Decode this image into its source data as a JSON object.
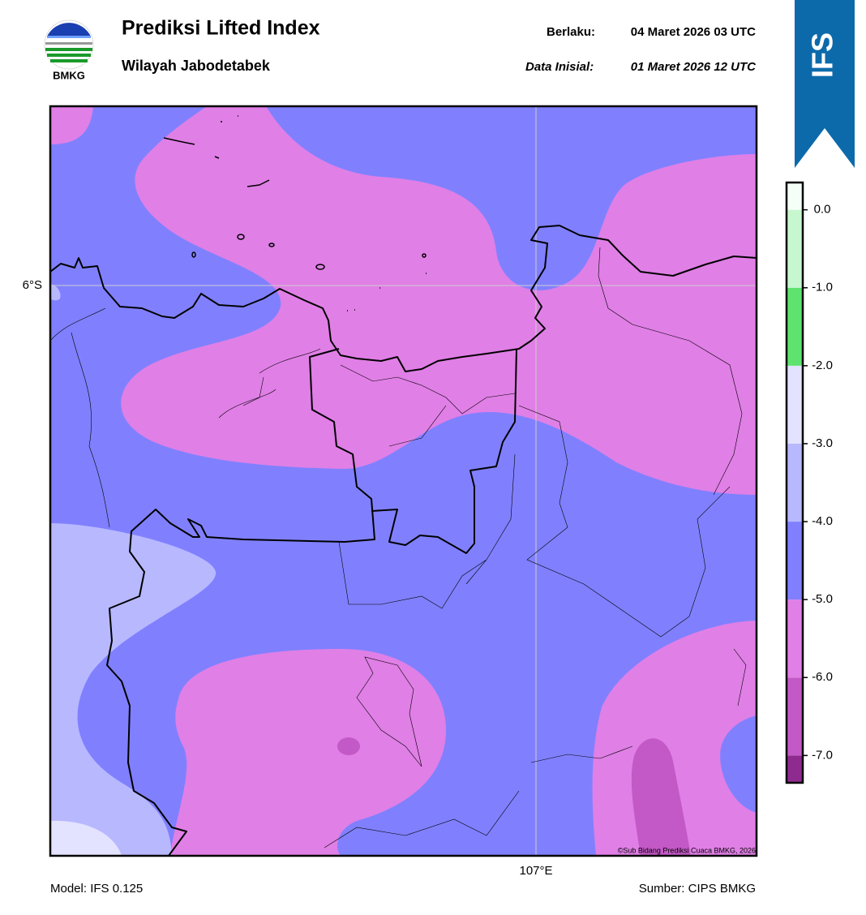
{
  "header": {
    "logo_text": "BMKG",
    "title": "Prediksi Lifted Index",
    "subtitle": "Wilayah Jabodetabek",
    "valid_label": "Berlaku:",
    "valid_time": "04 Maret 2026 03 UTC",
    "init_label": "Data Inisial:",
    "init_time": "01 Maret 2026 12 UTC",
    "badge": "IFS"
  },
  "map": {
    "lat_label": "6°S",
    "lon_label": "107°E",
    "copyright": "©Sub Bidang Prediksi Cuaca BMKG, 2026"
  },
  "colorbar": {
    "lim": [
      -7.35,
      0.35
    ],
    "bins": [
      -7.35,
      -7,
      -6,
      -5,
      -4,
      -3,
      -2,
      -1,
      0,
      0.35
    ],
    "colors": [
      "#8f2a8f",
      "#c359c6",
      "#e07fe6",
      "#8080ff",
      "#b8b8ff",
      "#e3e3ff",
      "#5ee36e",
      "#c6f7cf",
      "#f5fff7"
    ],
    "ticks": [
      {
        "value": 0,
        "label": "0.0"
      },
      {
        "value": -1,
        "label": "-1.0"
      },
      {
        "value": -2,
        "label": "-2.0"
      },
      {
        "value": -3,
        "label": "-3.0"
      },
      {
        "value": -4,
        "label": "-4.0"
      },
      {
        "value": -5,
        "label": "-5.0"
      },
      {
        "value": -6,
        "label": "-6.0"
      },
      {
        "value": -7,
        "label": "-7.0"
      }
    ]
  },
  "footer": {
    "model": "Model: IFS 0.125",
    "source": "Sumber: CIPS BMKG"
  }
}
